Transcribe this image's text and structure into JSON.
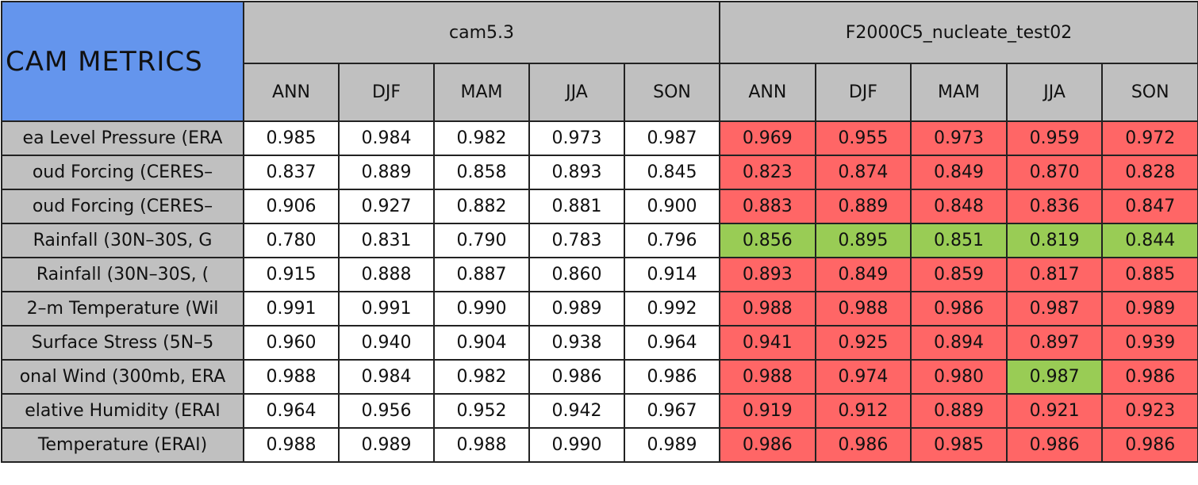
{
  "table": {
    "corner": "CAM METRICS",
    "models": [
      "cam5.3",
      "F2000C5_nucleate_test02"
    ],
    "seasons": [
      "ANN",
      "DJF",
      "MAM",
      "JJA",
      "SON"
    ],
    "rows": [
      {
        "label": "ea Level Pressure (ERA",
        "values": [
          "0.985",
          "0.984",
          "0.982",
          "0.973",
          "0.987",
          "0.969",
          "0.955",
          "0.973",
          "0.959",
          "0.972"
        ]
      },
      {
        "label": "oud Forcing (CERES–",
        "values": [
          "0.837",
          "0.889",
          "0.858",
          "0.893",
          "0.845",
          "0.823",
          "0.874",
          "0.849",
          "0.870",
          "0.828"
        ]
      },
      {
        "label": "oud Forcing (CERES–",
        "values": [
          "0.906",
          "0.927",
          "0.882",
          "0.881",
          "0.900",
          "0.883",
          "0.889",
          "0.848",
          "0.836",
          "0.847"
        ]
      },
      {
        "label": "Rainfall (30N–30S, G",
        "values": [
          "0.780",
          "0.831",
          "0.790",
          "0.783",
          "0.796",
          "0.856",
          "0.895",
          "0.851",
          "0.819",
          "0.844"
        ]
      },
      {
        "label": "Rainfall (30N–30S, (",
        "values": [
          "0.915",
          "0.888",
          "0.887",
          "0.860",
          "0.914",
          "0.893",
          "0.849",
          "0.859",
          "0.817",
          "0.885"
        ]
      },
      {
        "label": "2–m Temperature (Wil",
        "values": [
          "0.991",
          "0.991",
          "0.990",
          "0.989",
          "0.992",
          "0.988",
          "0.988",
          "0.986",
          "0.987",
          "0.989"
        ]
      },
      {
        "label": "Surface Stress (5N–5",
        "values": [
          "0.960",
          "0.940",
          "0.904",
          "0.938",
          "0.964",
          "0.941",
          "0.925",
          "0.894",
          "0.897",
          "0.939"
        ]
      },
      {
        "label": "onal Wind (300mb, ERA",
        "values": [
          "0.988",
          "0.984",
          "0.982",
          "0.986",
          "0.986",
          "0.988",
          "0.974",
          "0.980",
          "0.987",
          "0.986"
        ]
      },
      {
        "label": "elative Humidity (ERAI",
        "values": [
          "0.964",
          "0.956",
          "0.952",
          "0.942",
          "0.967",
          "0.919",
          "0.912",
          "0.889",
          "0.921",
          "0.923"
        ]
      },
      {
        "label": "Temperature (ERAI)",
        "values": [
          "0.988",
          "0.989",
          "0.988",
          "0.990",
          "0.989",
          "0.986",
          "0.986",
          "0.985",
          "0.986",
          "0.986"
        ]
      }
    ],
    "cell_colors": [
      [
        "white",
        "white",
        "white",
        "white",
        "white",
        "red",
        "red",
        "red",
        "red",
        "red"
      ],
      [
        "white",
        "white",
        "white",
        "white",
        "white",
        "red",
        "red",
        "red",
        "red",
        "red"
      ],
      [
        "white",
        "white",
        "white",
        "white",
        "white",
        "red",
        "red",
        "red",
        "red",
        "red"
      ],
      [
        "white",
        "white",
        "white",
        "white",
        "white",
        "green",
        "green",
        "green",
        "green",
        "green"
      ],
      [
        "white",
        "white",
        "white",
        "white",
        "white",
        "red",
        "red",
        "red",
        "red",
        "red"
      ],
      [
        "white",
        "white",
        "white",
        "white",
        "white",
        "red",
        "red",
        "red",
        "red",
        "red"
      ],
      [
        "white",
        "white",
        "white",
        "white",
        "white",
        "red",
        "red",
        "red",
        "red",
        "red"
      ],
      [
        "white",
        "white",
        "white",
        "white",
        "white",
        "red",
        "red",
        "red",
        "green",
        "red"
      ],
      [
        "white",
        "white",
        "white",
        "white",
        "white",
        "red",
        "red",
        "red",
        "red",
        "red"
      ],
      [
        "white",
        "white",
        "white",
        "white",
        "white",
        "red",
        "red",
        "red",
        "red",
        "red"
      ]
    ]
  }
}
